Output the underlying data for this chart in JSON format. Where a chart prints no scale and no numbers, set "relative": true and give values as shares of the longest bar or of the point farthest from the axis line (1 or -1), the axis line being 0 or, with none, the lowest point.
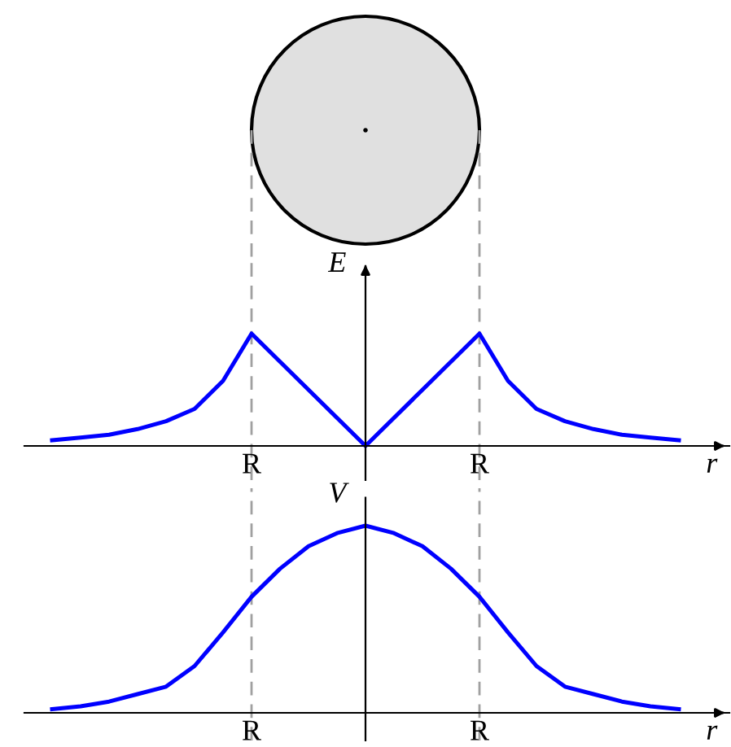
{
  "chart_data": [
    {
      "type": "line",
      "ylabel": "E",
      "xlabel": "r",
      "relative": true,
      "grid": "x",
      "line_style": "solid",
      "categories": [
        null,
        null,
        null,
        null,
        null,
        null,
        null,
        "R",
        null,
        null,
        null,
        null,
        null,
        null,
        null,
        "R",
        null,
        null,
        null,
        null,
        null,
        null,
        null
      ],
      "series": [
        {
          "color": "#0000ff",
          "values": [
            0.05,
            0.075,
            0.1,
            0.15,
            0.22,
            0.33,
            0.58,
            1,
            0.75,
            0.5,
            0.25,
            0,
            0.25,
            0.5,
            0.75,
            1,
            0.58,
            0.33,
            0.22,
            0.15,
            0.1,
            0.075,
            0.05
          ]
        }
      ]
    },
    {
      "type": "line",
      "ylabel": "V",
      "xlabel": "r",
      "relative": true,
      "grid": "x",
      "line_style": "solid",
      "categories": [
        null,
        null,
        null,
        null,
        null,
        null,
        null,
        "R",
        null,
        null,
        null,
        null,
        null,
        null,
        null,
        "R",
        null,
        null,
        null,
        null,
        null,
        null,
        null
      ],
      "series": [
        {
          "color": "#0000ff",
          "values": [
            0.02,
            0.035,
            0.06,
            0.1,
            0.14,
            0.25,
            0.43,
            0.62,
            0.77,
            0.89,
            0.96,
            1,
            0.96,
            0.89,
            0.77,
            0.62,
            0.43,
            0.25,
            0.14,
            0.1,
            0.06,
            0.035,
            0.02
          ]
        }
      ]
    }
  ]
}
